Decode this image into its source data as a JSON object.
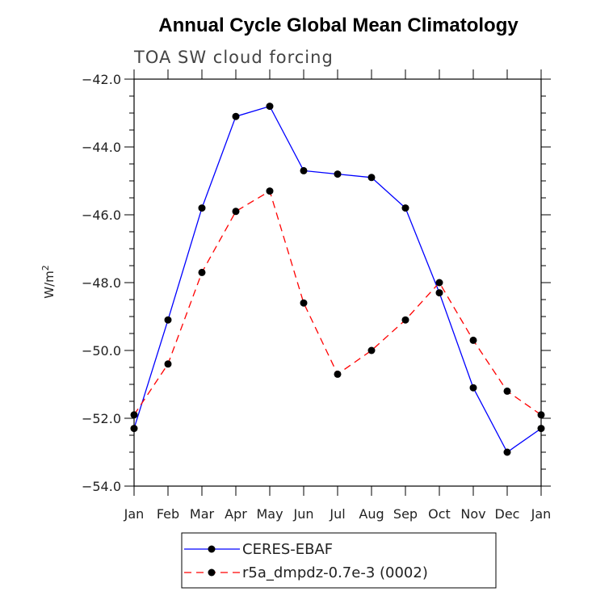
{
  "chart_data": {
    "type": "line",
    "title": "Annual Cycle Global Mean Climatology",
    "subtitle": "TOA SW cloud forcing",
    "xlabel": "",
    "ylabel": "W/m",
    "ylabel_superscript": "2",
    "categories": [
      "Jan",
      "Feb",
      "Mar",
      "Apr",
      "May",
      "Jun",
      "Jul",
      "Aug",
      "Sep",
      "Oct",
      "Nov",
      "Dec",
      "Jan"
    ],
    "ylim": [
      -54.0,
      -42.0
    ],
    "yticks": [
      -54.0,
      -52.0,
      -50.0,
      -48.0,
      -46.0,
      -44.0,
      -42.0
    ],
    "ytick_labels": [
      "−54.0",
      "−52.0",
      "−50.0",
      "−48.0",
      "−46.0",
      "−44.0",
      "−42.0"
    ],
    "grid": false,
    "legend_position": "bottom",
    "series": [
      {
        "name": "CERES-EBAF",
        "color": "#0000ff",
        "dash": "solid",
        "values": [
          -52.3,
          -49.1,
          -45.8,
          -43.1,
          -42.8,
          -44.7,
          -44.8,
          -44.9,
          -45.8,
          -48.3,
          -51.1,
          -53.0,
          -52.3
        ]
      },
      {
        "name": "r5a_dmpdz-0.7e-3 (0002)",
        "color": "#ff0000",
        "dash": "dashed",
        "values": [
          -51.9,
          -50.4,
          -47.7,
          -45.9,
          -45.3,
          -48.6,
          -50.7,
          -50.0,
          -49.1,
          -48.0,
          -49.7,
          -51.2,
          -51.9
        ]
      }
    ]
  }
}
